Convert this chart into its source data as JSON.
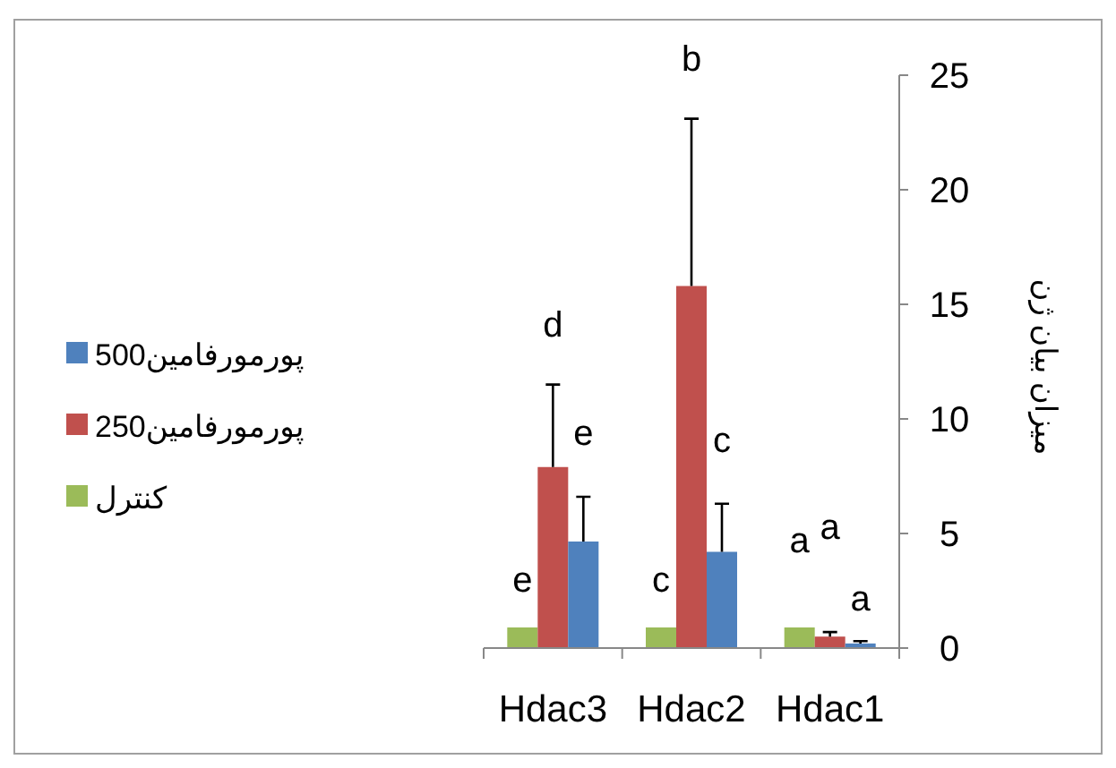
{
  "chart_data": {
    "type": "bar",
    "categories": [
      "Hdac3",
      "Hdac2",
      "Hdac1"
    ],
    "series": [
      {
        "name": "کنترل",
        "color": "#9bbb59",
        "values": [
          0.9,
          0.9,
          0.9
        ]
      },
      {
        "name": "پورمورفامین250",
        "color": "#c0504d",
        "values": [
          7.9,
          15.8,
          0.5
        ],
        "errors": [
          [
            7.9,
            11.5
          ],
          [
            15.8,
            23.1
          ],
          [
            0.5,
            0.7
          ]
        ]
      },
      {
        "name": "پورمورفامین500",
        "color": "#4f81bd",
        "values": [
          4.65,
          4.2,
          0.2
        ],
        "errors": [
          [
            4.65,
            6.6
          ],
          [
            4.2,
            6.3
          ],
          [
            0.2,
            0.3
          ]
        ]
      }
    ],
    "ylabel": "میزان بیان ژن",
    "ylim": [
      0,
      25
    ],
    "yticks": [
      0,
      5,
      10,
      15,
      20,
      25
    ],
    "legend": "left",
    "grid": false,
    "annotations": [
      "e",
      "d",
      "e",
      "c",
      "b",
      "c",
      "a",
      "a",
      "a"
    ]
  }
}
